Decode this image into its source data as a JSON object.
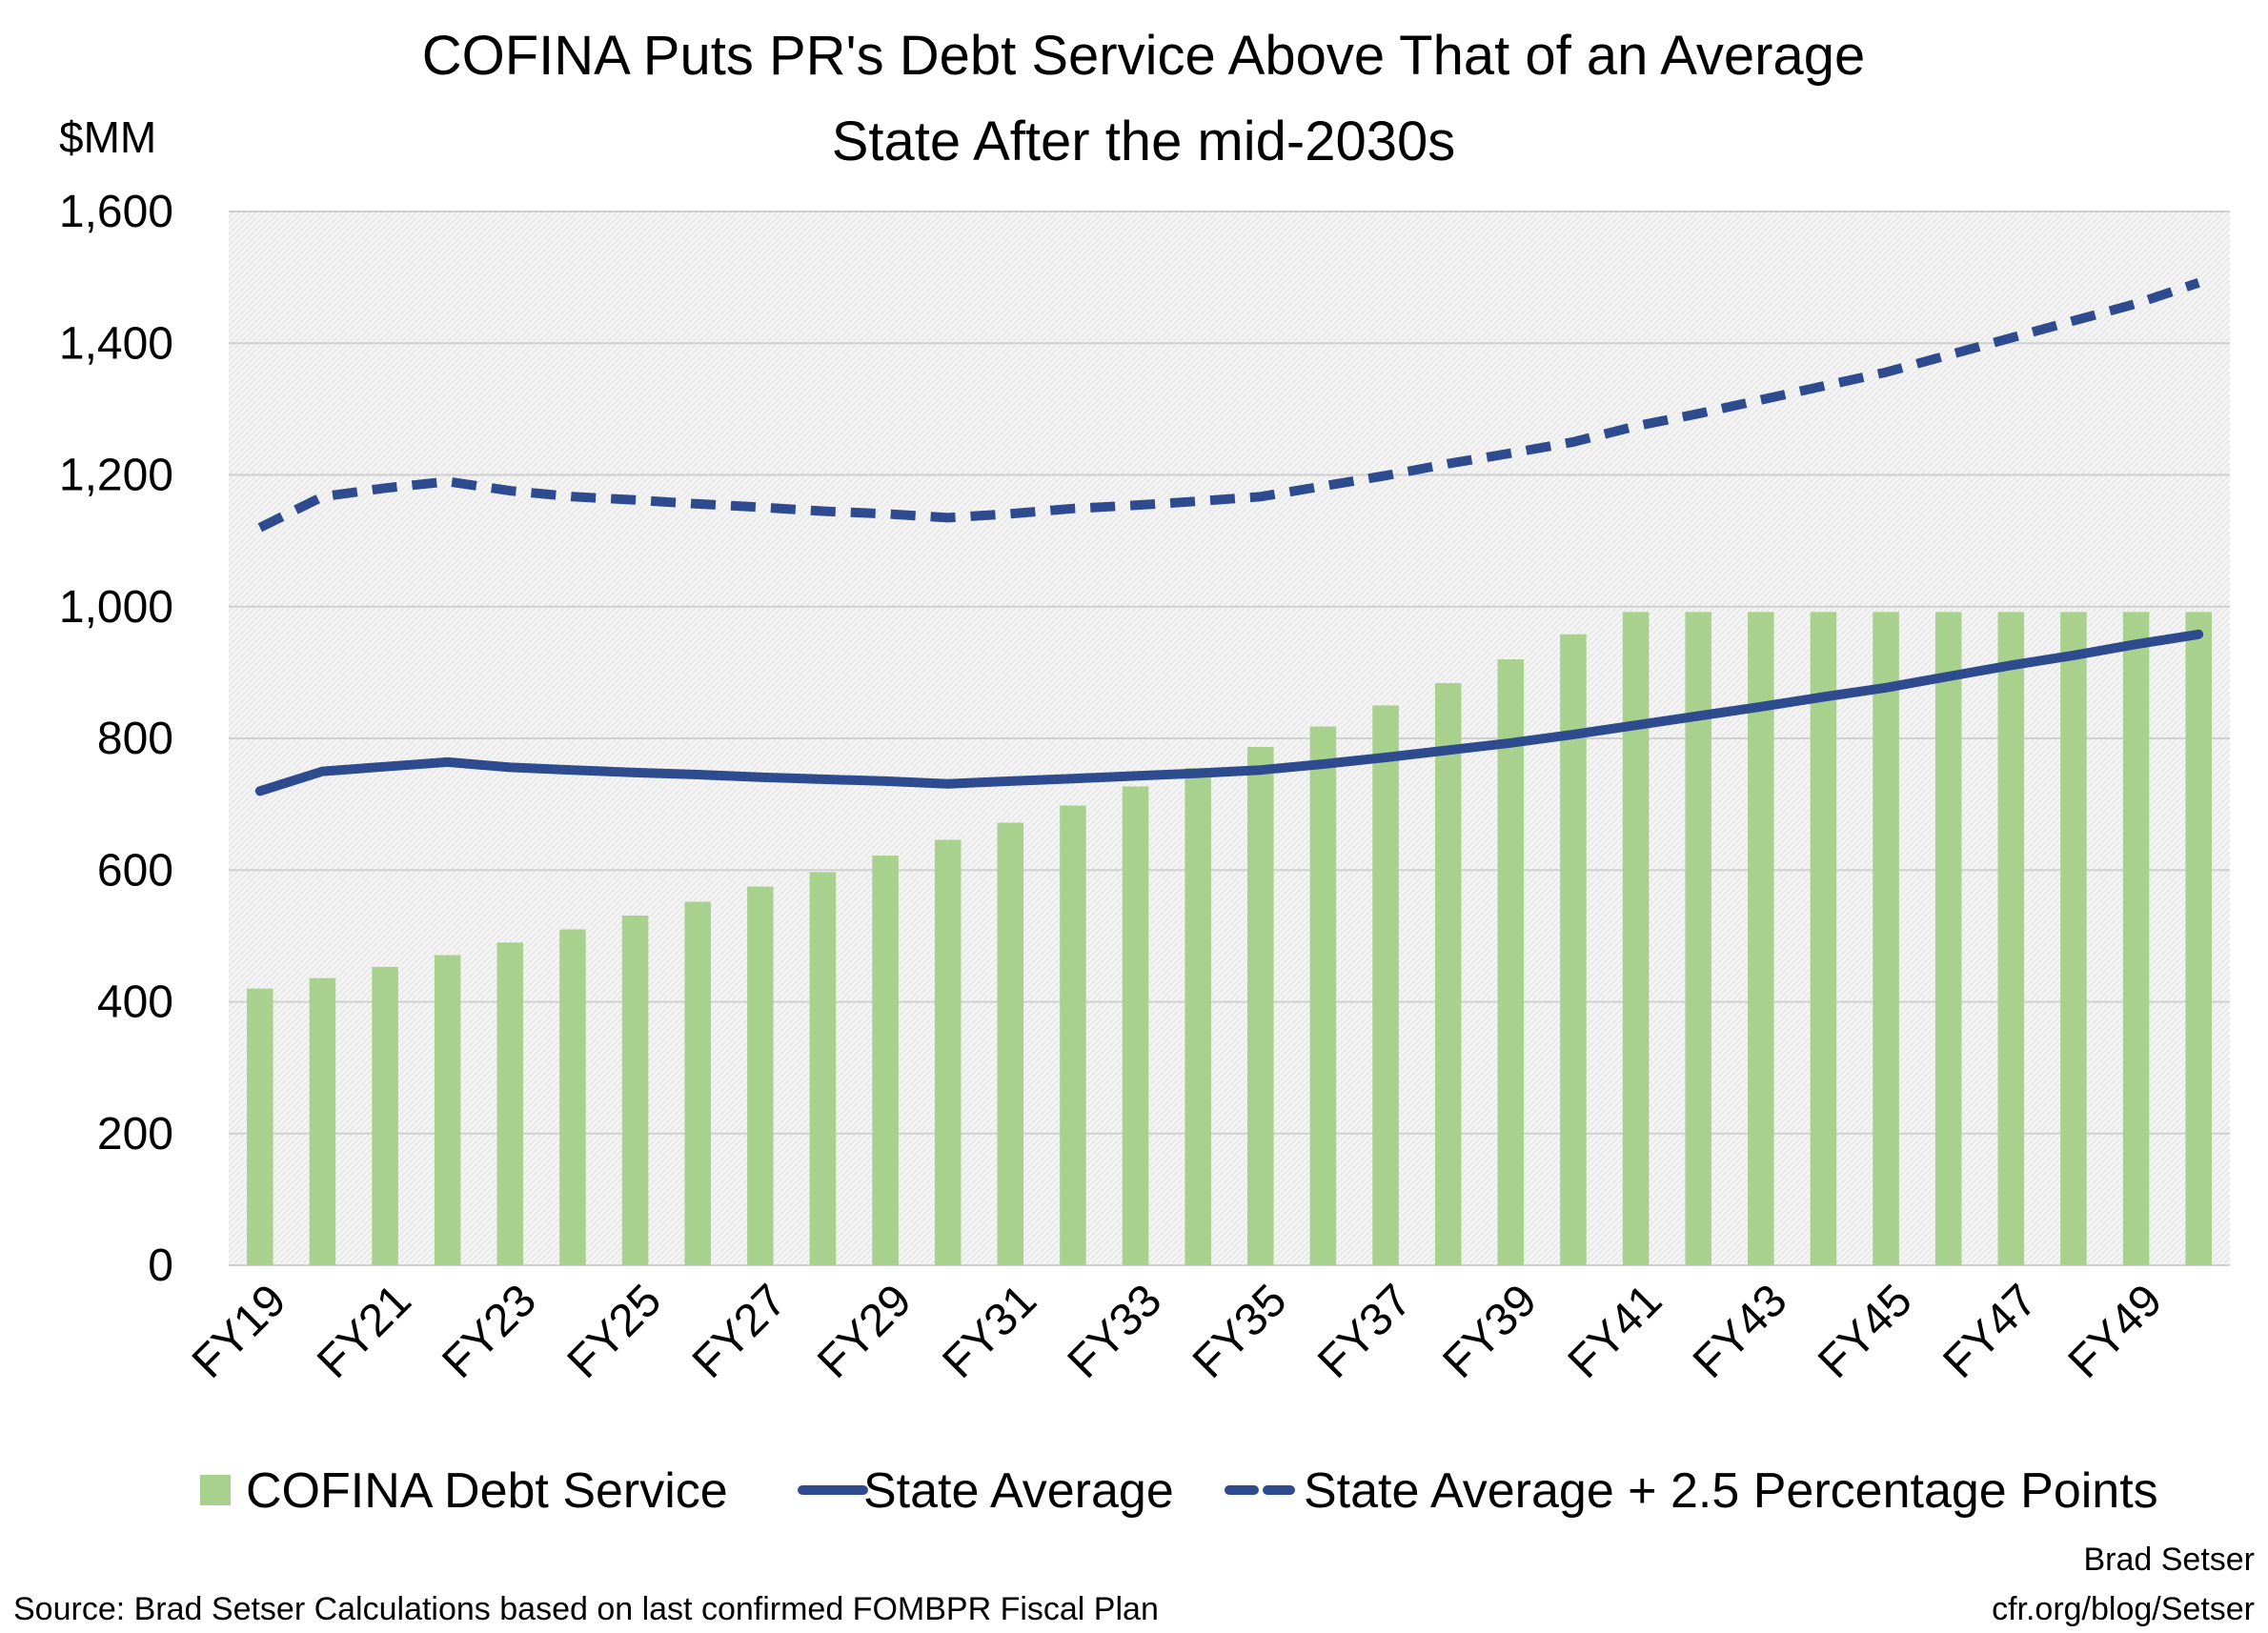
{
  "chart_data": {
    "type": "bar",
    "title_lines": [
      "COFINA Puts PR's Debt Service Above That of an Average",
      "State After the mid-2030s"
    ],
    "y_unit": "$MM",
    "ylim": [
      0,
      1600
    ],
    "y_ticks": [
      0,
      200,
      400,
      600,
      800,
      1000,
      1200,
      1400,
      1600
    ],
    "y_tick_labels": [
      "0",
      "200",
      "400",
      "600",
      "800",
      "1,000",
      "1,200",
      "1,400",
      "1,600"
    ],
    "grid": true,
    "legend_position": "bottom",
    "categories": [
      "FY19",
      "FY20",
      "FY21",
      "FY22",
      "FY23",
      "FY24",
      "FY25",
      "FY26",
      "FY27",
      "FY28",
      "FY29",
      "FY30",
      "FY31",
      "FY32",
      "FY33",
      "FY34",
      "FY35",
      "FY36",
      "FY37",
      "FY38",
      "FY39",
      "FY40",
      "FY41",
      "FY42",
      "FY43",
      "FY44",
      "FY45",
      "FY46",
      "FY47",
      "FY48",
      "FY49",
      "FY50"
    ],
    "tick_labels": [
      "FY19",
      "FY21",
      "FY23",
      "FY25",
      "FY27",
      "FY29",
      "FY31",
      "FY33",
      "FY35",
      "FY37",
      "FY39",
      "FY41",
      "FY43",
      "FY45",
      "FY47",
      "FY49"
    ],
    "series": [
      {
        "name": "COFINA Debt Service",
        "type": "bar",
        "color": "#A9D18E",
        "values": [
          420,
          436,
          453,
          471,
          490,
          510,
          531,
          552,
          575,
          597,
          622,
          646,
          672,
          698,
          727,
          755,
          787,
          818,
          850,
          884,
          920,
          958,
          992,
          992,
          992,
          992,
          992,
          992,
          992,
          992,
          992,
          992
        ]
      },
      {
        "name": "State Average",
        "type": "line",
        "style": "solid",
        "color": "#2F4B8F",
        "values": [
          720,
          750,
          757,
          764,
          756,
          752,
          748,
          745,
          741,
          738,
          735,
          731,
          735,
          739,
          743,
          747,
          752,
          761,
          771,
          782,
          793,
          806,
          820,
          834,
          848,
          863,
          877,
          894,
          911,
          926,
          943,
          958
        ]
      },
      {
        "name": "State Average + 2.5 Percentage Points",
        "type": "line",
        "style": "dashed",
        "color": "#2F4B8F",
        "values": [
          1120,
          1167,
          1180,
          1190,
          1176,
          1167,
          1162,
          1156,
          1151,
          1145,
          1141,
          1135,
          1141,
          1149,
          1154,
          1160,
          1167,
          1183,
          1199,
          1217,
          1233,
          1250,
          1274,
          1293,
          1314,
          1335,
          1356,
          1382,
          1408,
          1434,
          1460,
          1492
        ]
      }
    ]
  },
  "source_note": "Source: Brad Setser Calculations based on last confirmed FOMBPR Fiscal Plan",
  "credit_lines": [
    "Brad Setser",
    "cfr.org/blog/Setser"
  ]
}
